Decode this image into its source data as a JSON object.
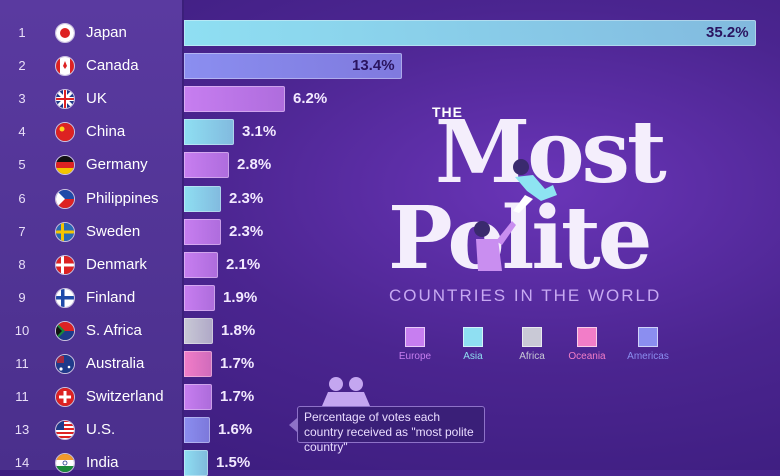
{
  "chart_data": {
    "type": "bar",
    "title_prefix": "THE",
    "title_line1": "Most",
    "title_line2": "Polite",
    "subtitle": "COUNTRIES IN THE WORLD",
    "note": "Percentage of votes each country received as \"most polite country\"",
    "xlim": [
      0,
      35.2
    ],
    "legend": [
      {
        "name": "Europe",
        "color": "#c77ef0"
      },
      {
        "name": "Asia",
        "color": "#8fdff2"
      },
      {
        "name": "Africa",
        "color": "#c9c9d6"
      },
      {
        "name": "Oceania",
        "color": "#f27dc8"
      },
      {
        "name": "Americas",
        "color": "#8b8ef0"
      }
    ],
    "rows": [
      {
        "rank": "1",
        "country": "Japan",
        "value": 35.2,
        "label": "35.2%",
        "region": "Asia",
        "flag": "japan-flag-icon"
      },
      {
        "rank": "2",
        "country": "Canada",
        "value": 13.4,
        "label": "13.4%",
        "region": "Americas",
        "flag": "canada-flag-icon"
      },
      {
        "rank": "3",
        "country": "UK",
        "value": 6.2,
        "label": "6.2%",
        "region": "Europe",
        "flag": "uk-flag-icon"
      },
      {
        "rank": "4",
        "country": "China",
        "value": 3.1,
        "label": "3.1%",
        "region": "Asia",
        "flag": "china-flag-icon"
      },
      {
        "rank": "5",
        "country": "Germany",
        "value": 2.8,
        "label": "2.8%",
        "region": "Europe",
        "flag": "germany-flag-icon"
      },
      {
        "rank": "6",
        "country": "Philippines",
        "value": 2.3,
        "label": "2.3%",
        "region": "Asia",
        "flag": "philippines-flag-icon"
      },
      {
        "rank": "7",
        "country": "Sweden",
        "value": 2.3,
        "label": "2.3%",
        "region": "Europe",
        "flag": "sweden-flag-icon"
      },
      {
        "rank": "8",
        "country": "Denmark",
        "value": 2.1,
        "label": "2.1%",
        "region": "Europe",
        "flag": "denmark-flag-icon"
      },
      {
        "rank": "9",
        "country": "Finland",
        "value": 1.9,
        "label": "1.9%",
        "region": "Europe",
        "flag": "finland-flag-icon"
      },
      {
        "rank": "10",
        "country": "S. Africa",
        "value": 1.8,
        "label": "1.8%",
        "region": "Africa",
        "flag": "south-africa-flag-icon"
      },
      {
        "rank": "11",
        "country": "Australia",
        "value": 1.7,
        "label": "1.7%",
        "region": "Oceania",
        "flag": "australia-flag-icon"
      },
      {
        "rank": "11",
        "country": "Switzerland",
        "value": 1.7,
        "label": "1.7%",
        "region": "Europe",
        "flag": "switzerland-flag-icon"
      },
      {
        "rank": "13",
        "country": "U.S.",
        "value": 1.6,
        "label": "1.6%",
        "region": "Americas",
        "flag": "us-flag-icon"
      },
      {
        "rank": "14",
        "country": "India",
        "value": 1.5,
        "label": "1.5%",
        "region": "Asia",
        "flag": "india-flag-icon"
      }
    ]
  }
}
